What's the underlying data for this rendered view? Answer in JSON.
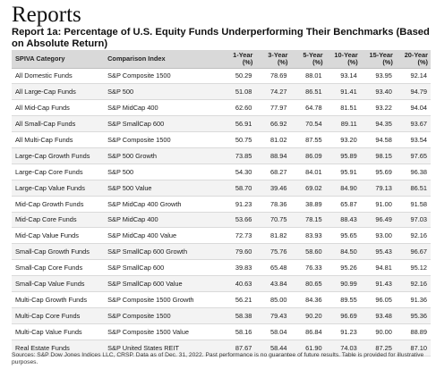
{
  "page_title": "Reports",
  "report_title": "Report 1a: Percentage of U.S. Equity Funds Underperforming Their Benchmarks (Based on Absolute Return)",
  "table": {
    "headers": {
      "category": "SPIVA Category",
      "index": "Comparison Index",
      "periods": [
        {
          "line1": "1-Year",
          "line2": "(%)"
        },
        {
          "line1": "3-Year",
          "line2": "(%)"
        },
        {
          "line1": "5-Year",
          "line2": "(%)"
        },
        {
          "line1": "10-Year",
          "line2": "(%)"
        },
        {
          "line1": "15-Year",
          "line2": "(%)"
        },
        {
          "line1": "20-Year",
          "line2": "(%)"
        }
      ]
    },
    "rows": [
      {
        "category": "All Domestic Funds",
        "index": "S&P Composite 1500",
        "values": [
          "50.29",
          "78.69",
          "88.01",
          "93.14",
          "93.95",
          "92.14"
        ]
      },
      {
        "category": "All Large-Cap Funds",
        "index": "S&P 500",
        "values": [
          "51.08",
          "74.27",
          "86.51",
          "91.41",
          "93.40",
          "94.79"
        ]
      },
      {
        "category": "All Mid-Cap Funds",
        "index": "S&P MidCap 400",
        "values": [
          "62.60",
          "77.97",
          "64.78",
          "81.51",
          "93.22",
          "94.04"
        ]
      },
      {
        "category": "All Small-Cap Funds",
        "index": "S&P SmallCap 600",
        "values": [
          "56.91",
          "66.92",
          "70.54",
          "89.11",
          "94.35",
          "93.67"
        ]
      },
      {
        "category": "All Multi-Cap Funds",
        "index": "S&P Composite 1500",
        "values": [
          "50.75",
          "81.02",
          "87.55",
          "93.20",
          "94.58",
          "93.54"
        ]
      },
      {
        "category": "Large-Cap Growth Funds",
        "index": "S&P 500 Growth",
        "values": [
          "73.85",
          "88.94",
          "86.09",
          "95.89",
          "98.15",
          "97.65"
        ]
      },
      {
        "category": "Large-Cap Core Funds",
        "index": "S&P 500",
        "values": [
          "54.30",
          "68.27",
          "84.01",
          "95.91",
          "95.69",
          "96.38"
        ]
      },
      {
        "category": "Large-Cap Value Funds",
        "index": "S&P 500 Value",
        "values": [
          "58.70",
          "39.46",
          "69.02",
          "84.90",
          "79.13",
          "86.51"
        ]
      },
      {
        "category": "Mid-Cap Growth Funds",
        "index": "S&P MidCap 400 Growth",
        "values": [
          "91.23",
          "78.36",
          "38.89",
          "65.87",
          "91.00",
          "91.58"
        ]
      },
      {
        "category": "Mid-Cap Core Funds",
        "index": "S&P MidCap 400",
        "values": [
          "53.66",
          "70.75",
          "78.15",
          "88.43",
          "96.49",
          "97.03"
        ]
      },
      {
        "category": "Mid-Cap Value Funds",
        "index": "S&P MidCap 400 Value",
        "values": [
          "72.73",
          "81.82",
          "83.93",
          "95.65",
          "93.00",
          "92.16"
        ]
      },
      {
        "category": "Small-Cap Growth Funds",
        "index": "S&P SmallCap 600 Growth",
        "values": [
          "79.60",
          "75.76",
          "58.60",
          "84.50",
          "95.43",
          "96.67"
        ]
      },
      {
        "category": "Small-Cap Core Funds",
        "index": "S&P SmallCap 600",
        "values": [
          "39.83",
          "65.48",
          "76.33",
          "95.26",
          "94.81",
          "95.12"
        ]
      },
      {
        "category": "Small-Cap Value Funds",
        "index": "S&P SmallCap 600 Value",
        "values": [
          "40.63",
          "43.84",
          "80.65",
          "90.99",
          "91.43",
          "92.16"
        ]
      },
      {
        "category": "Multi-Cap Growth Funds",
        "index": "S&P Composite 1500 Growth",
        "values": [
          "56.21",
          "85.00",
          "84.36",
          "89.55",
          "96.05",
          "91.36"
        ]
      },
      {
        "category": "Multi-Cap Core Funds",
        "index": "S&P Composite 1500",
        "values": [
          "58.38",
          "79.43",
          "90.20",
          "96.69",
          "93.48",
          "95.36"
        ]
      },
      {
        "category": "Multi-Cap Value Funds",
        "index": "S&P Composite 1500 Value",
        "values": [
          "58.16",
          "58.04",
          "86.84",
          "91.23",
          "90.00",
          "88.89"
        ]
      },
      {
        "category": "Real Estate Funds",
        "index": "S&P United States REIT",
        "values": [
          "87.67",
          "58.44",
          "61.90",
          "74.03",
          "87.25",
          "87.10"
        ]
      }
    ]
  },
  "footnote": "Sources: S&P Dow Jones Indices LLC, CRSP.  Data as of Dec. 31, 2022.  Past performance is no guarantee of future results.  Table is provided for illustrative purposes."
}
